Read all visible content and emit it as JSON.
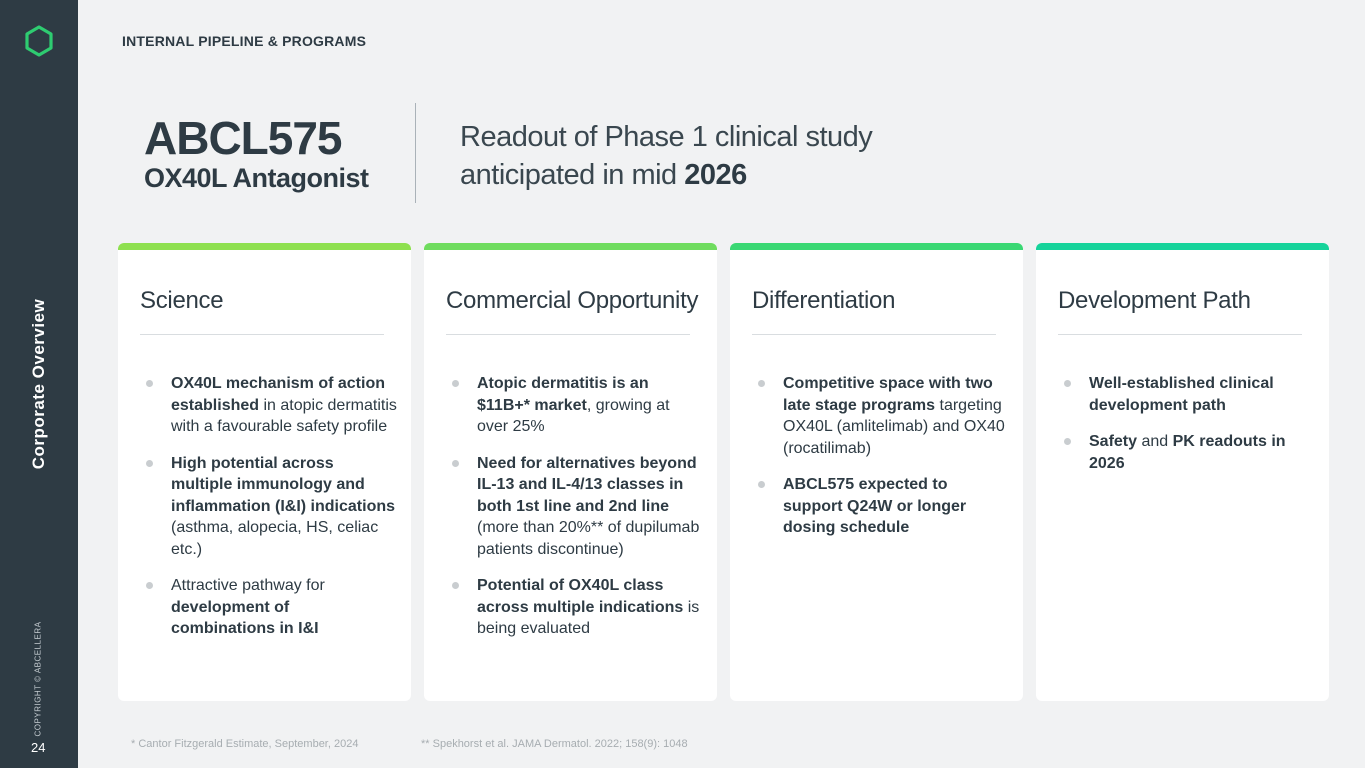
{
  "sidebar": {
    "title": "Corporate Overview",
    "copyright": "COPYRIGHT © ABCELLERA",
    "page_number": "24",
    "logo_icon": "hexagon-logo-icon",
    "accent": "#2ecc71"
  },
  "header": {
    "section_label": "INTERNAL PIPELINE & PROGRAMS",
    "product_name": "ABCL575",
    "product_subtitle": "OX40L Antagonist",
    "readout_line1": "Readout of Phase 1 clinical study",
    "readout_line2_prefix": "anticipated in mid ",
    "readout_year": "2026"
  },
  "cards": [
    {
      "title": "Science",
      "bar_color": "#8ee04f",
      "items": [
        [
          {
            "t": "OX40L mechanism of action established",
            "b": true
          },
          {
            "t": " in atopic dermatitis with a favourable safety profile",
            "b": false
          }
        ],
        [
          {
            "t": "High potential across multiple immunology and inflammation (I&I) indications",
            "b": true
          },
          {
            "t": " (asthma, alopecia, HS, celiac etc.)",
            "b": false
          }
        ],
        [
          {
            "t": "Attractive pathway for ",
            "b": false
          },
          {
            "t": "development of combinations in I&I",
            "b": true
          }
        ]
      ]
    },
    {
      "title": "Commercial Opportunity",
      "bar_color": "#6fdc5e",
      "items": [
        [
          {
            "t": "Atopic dermatitis is an $11B+* market",
            "b": true
          },
          {
            "t": ", growing at over 25%",
            "b": false
          }
        ],
        [
          {
            "t": "Need for alternatives beyond IL-13 and IL-4/13 classes in both 1st line and 2nd line",
            "b": true
          },
          {
            "t": " (more than 20%** of dupilumab patients discontinue)",
            "b": false
          }
        ],
        [
          {
            "t": "Potential of OX40L class across multiple indications",
            "b": true
          },
          {
            "t": " is being evaluated",
            "b": false
          }
        ]
      ]
    },
    {
      "title": "Differentiation",
      "bar_color": "#3ad873",
      "items": [
        [
          {
            "t": "Competitive space with two late stage programs",
            "b": true
          },
          {
            "t": " targeting OX40L (amlitelimab) and OX40 (rocatilimab)",
            "b": false
          }
        ],
        [
          {
            "t": "ABCL575 expected to support Q24W or longer dosing schedule",
            "b": true
          }
        ]
      ]
    },
    {
      "title": "Development Path",
      "bar_color": "#16d39a",
      "items": [
        [
          {
            "t": "Well-established clinical development path",
            "b": true
          }
        ],
        [
          {
            "t": "Safety",
            "b": true
          },
          {
            "t": " and ",
            "b": false
          },
          {
            "t": "PK readouts in 2026",
            "b": true
          }
        ]
      ]
    }
  ],
  "footnotes": {
    "note1": "* Cantor Fitzgerald Estimate, September, 2024",
    "note2": "** Spekhorst et al. JAMA Dermatol. 2022; 158(9): 1048"
  }
}
